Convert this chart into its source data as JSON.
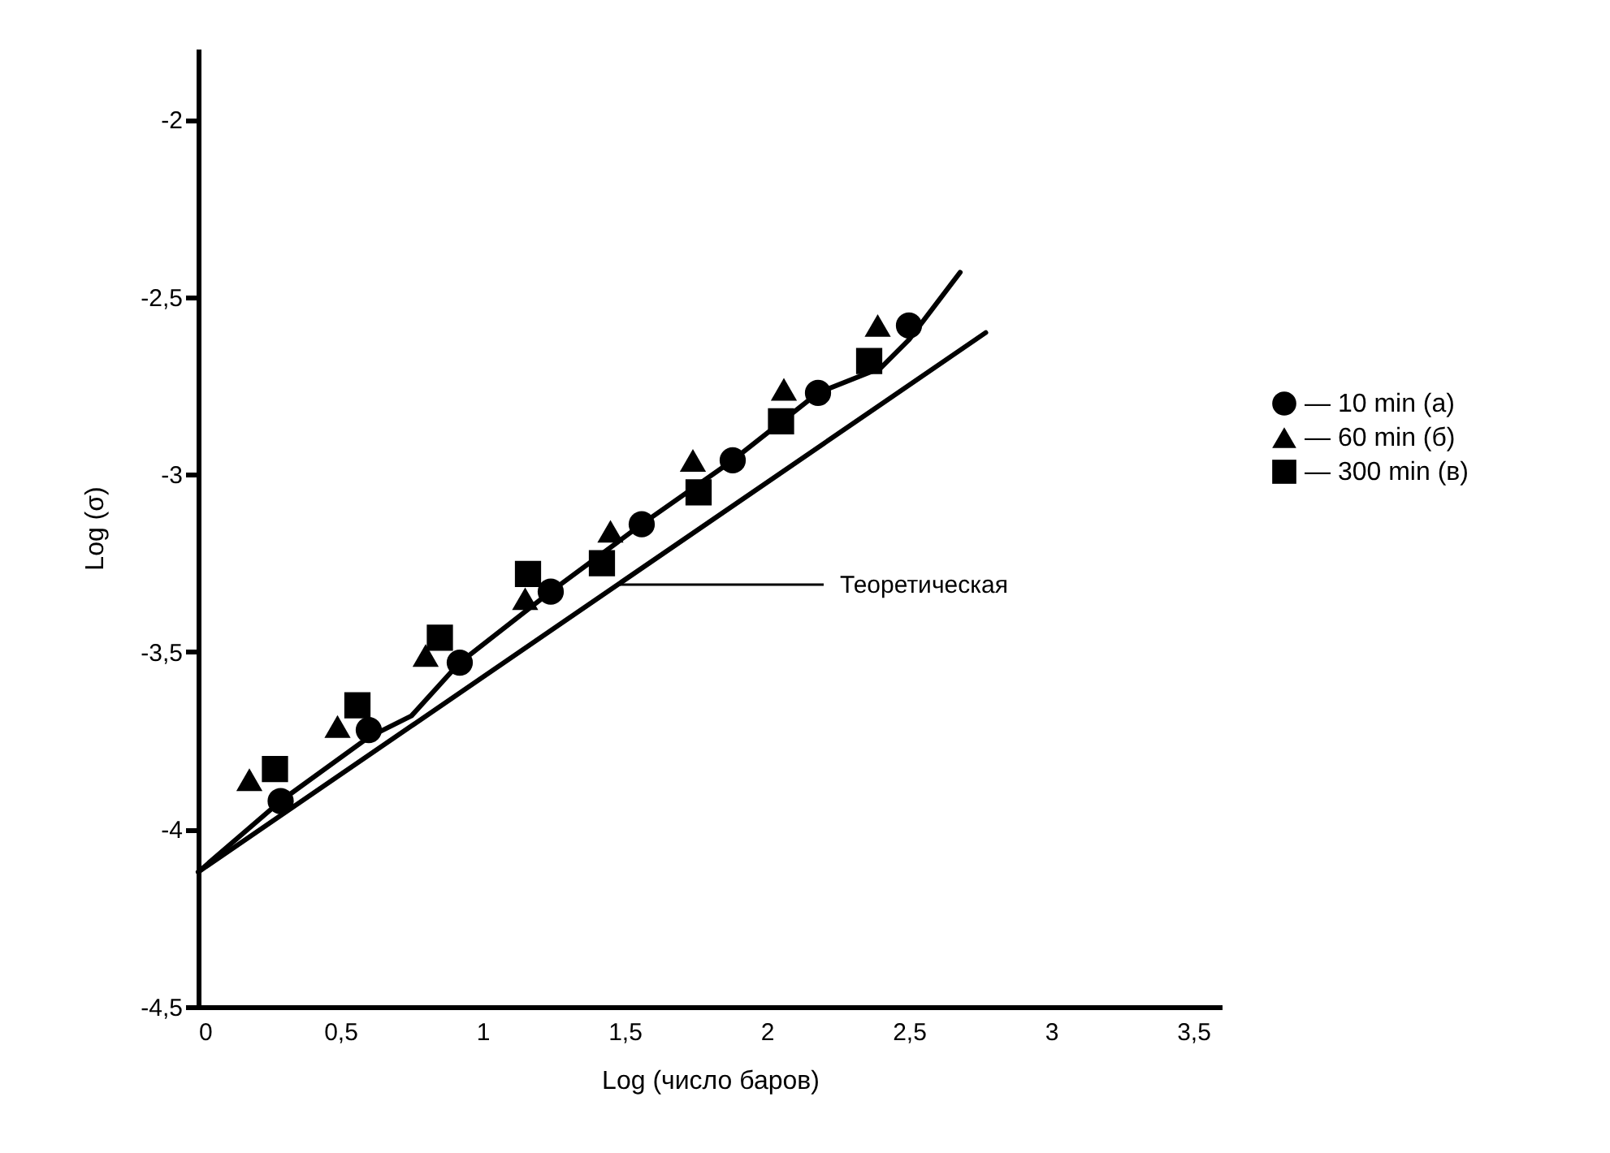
{
  "chart_data": {
    "type": "scatter",
    "xlabel": "Log (число баров)",
    "ylabel": "Log (σ)",
    "xlim": [
      0,
      3.6
    ],
    "ylim": [
      -4.5,
      -1.8
    ],
    "xticks": [
      {
        "value": 0,
        "label": "0"
      },
      {
        "value": 0.5,
        "label": "0,5"
      },
      {
        "value": 1,
        "label": "1"
      },
      {
        "value": 1.5,
        "label": "1,5"
      },
      {
        "value": 2,
        "label": "2"
      },
      {
        "value": 2.5,
        "label": "2,5"
      },
      {
        "value": 3,
        "label": "3"
      },
      {
        "value": 3.5,
        "label": "3,5"
      }
    ],
    "yticks": [
      {
        "value": -4.5,
        "label": "-4,5"
      },
      {
        "value": -4,
        "label": "-4"
      },
      {
        "value": -3.5,
        "label": "-3,5"
      },
      {
        "value": -3,
        "label": "-3"
      },
      {
        "value": -2.5,
        "label": "-2,5"
      },
      {
        "value": -2,
        "label": "-2"
      }
    ],
    "grid": false,
    "legend": "right",
    "line_style": "solid",
    "annotations": [
      {
        "text": "Теоретическая",
        "x": 1.48,
        "y": -3.31
      }
    ],
    "series": [
      {
        "name": "— 10 min (а)",
        "marker": "circle",
        "color": "#000000",
        "x": [
          0.29,
          0.6,
          0.92,
          1.24,
          1.56,
          1.88,
          2.18,
          2.5
        ],
        "values": [
          -3.92,
          -3.72,
          -3.53,
          -3.33,
          -3.14,
          -2.96,
          -2.77,
          -2.58
        ]
      },
      {
        "name": "— 60 min (б)",
        "marker": "triangle",
        "color": "#000000",
        "x": [
          0.18,
          0.49,
          0.8,
          1.15,
          1.45,
          1.74,
          2.06,
          2.39
        ],
        "values": [
          -3.86,
          -3.71,
          -3.51,
          -3.35,
          -3.16,
          -2.96,
          -2.76,
          -2.58
        ]
      },
      {
        "name": "— 300 min (в)",
        "marker": "square",
        "color": "#000000",
        "x": [
          0.27,
          0.56,
          0.85,
          1.16,
          1.42,
          1.76,
          2.05,
          2.36
        ],
        "values": [
          -3.83,
          -3.65,
          -3.46,
          -3.28,
          -3.25,
          -3.05,
          -2.85,
          -2.68
        ]
      },
      {
        "type": "line",
        "marker": "none",
        "color": "#000000",
        "x": [
          0,
          0.29,
          0.6,
          0.75,
          0.92,
          1.24,
          1.56,
          1.88,
          2.18,
          2.4,
          2.5,
          2.68
        ],
        "values": [
          -4.12,
          -3.92,
          -3.74,
          -3.68,
          -3.53,
          -3.33,
          -3.14,
          -2.96,
          -2.77,
          -2.7,
          -2.62,
          -2.43
        ]
      },
      {
        "type": "line",
        "marker": "none",
        "color": "#000000",
        "x": [
          0,
          2.77
        ],
        "values": [
          -4.12,
          -2.6
        ]
      }
    ]
  }
}
